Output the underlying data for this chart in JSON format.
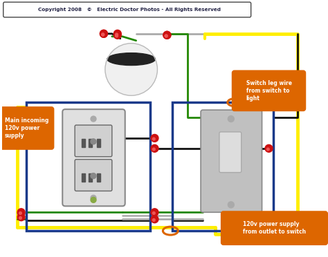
{
  "bg_color": "#ffffff",
  "title_text": "Copyright 2008   ©   Electric Doctor Photos - All Rights Reserved",
  "title_box_color": "#ffffff",
  "title_border_color": "#555555",
  "wire_yellow": "#ffee00",
  "wire_black": "#111111",
  "wire_green": "#228800",
  "wire_white": "#cccccc",
  "wire_gray": "#aaaaaa",
  "wire_orange": "#dd6600",
  "connector_red": "#cc1111",
  "box_color": "#1a3a8a",
  "annotation_bg": "#dd6600",
  "annotation_text": "#ffffff",
  "label_main": "Main incoming\n120v power\nsupply",
  "label_switch_leg": "Switch leg wire\nfrom switch to\nlight",
  "label_120v": "120v power supply\nfrom outlet to switch",
  "outlet_body": "#e8e8e8",
  "switch_body": "#c0c0c0",
  "light_dome": "#f5f5f5",
  "light_base": "#111111"
}
